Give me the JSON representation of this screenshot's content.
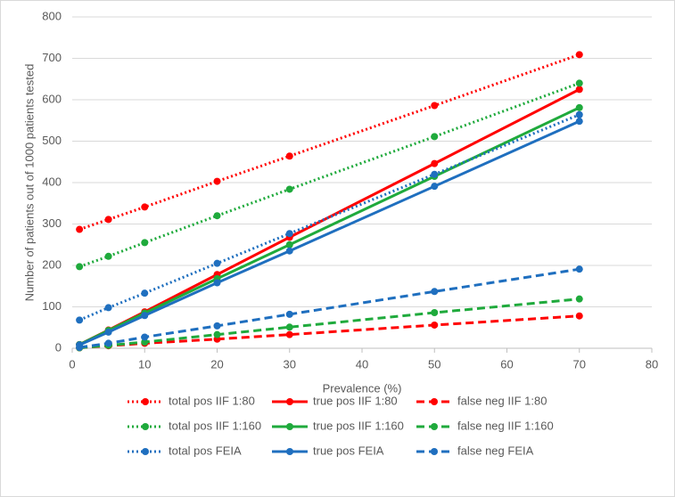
{
  "chart_data": {
    "type": "line",
    "x_label": "Prevalence (%)",
    "y_label": "Number of patients out of 1000 patients tested",
    "x": [
      1,
      5,
      10,
      20,
      30,
      50,
      70
    ],
    "xlim": [
      0,
      80
    ],
    "xticks": [
      0,
      10,
      20,
      30,
      40,
      50,
      60,
      70,
      80
    ],
    "ylim": [
      0,
      800
    ],
    "yticks": [
      0,
      100,
      200,
      300,
      400,
      500,
      600,
      700,
      800
    ],
    "grid": true,
    "legend": "bottom",
    "series": [
      {
        "name": "total pos IIF 1:80",
        "color": "#ff0000",
        "style": "dotted",
        "values": [
          287,
          311,
          341,
          403,
          464,
          586,
          709
        ]
      },
      {
        "name": "true pos IIF 1:80",
        "color": "#ff0000",
        "style": "solid",
        "values": [
          9,
          44,
          88,
          178,
          268,
          446,
          625
        ]
      },
      {
        "name": "false neg IIF 1:80",
        "color": "#ff0000",
        "style": "dashed",
        "values": [
          1,
          6,
          12,
          22,
          33,
          56,
          78
        ]
      },
      {
        "name": "total pos IIF 1:160",
        "color": "#1faa3c",
        "style": "dotted",
        "values": [
          197,
          222,
          255,
          320,
          384,
          511,
          640
        ]
      },
      {
        "name": "true pos IIF 1:160",
        "color": "#1faa3c",
        "style": "solid",
        "values": [
          9,
          43,
          85,
          168,
          250,
          415,
          581
        ]
      },
      {
        "name": "false neg IIF 1:160",
        "color": "#1faa3c",
        "style": "dashed",
        "values": [
          1,
          7,
          15,
          33,
          51,
          86,
          119
        ]
      },
      {
        "name": "total pos FEIA",
        "color": "#1f6fbf",
        "style": "dotted",
        "values": [
          68,
          98,
          133,
          205,
          277,
          420,
          564
        ]
      },
      {
        "name": "true pos FEIA",
        "color": "#1f6fbf",
        "style": "solid",
        "values": [
          8,
          39,
          79,
          158,
          235,
          391,
          548
        ]
      },
      {
        "name": "false neg FEIA",
        "color": "#1f6fbf",
        "style": "dashed",
        "values": [
          2,
          12,
          27,
          54,
          82,
          137,
          191
        ]
      }
    ]
  }
}
